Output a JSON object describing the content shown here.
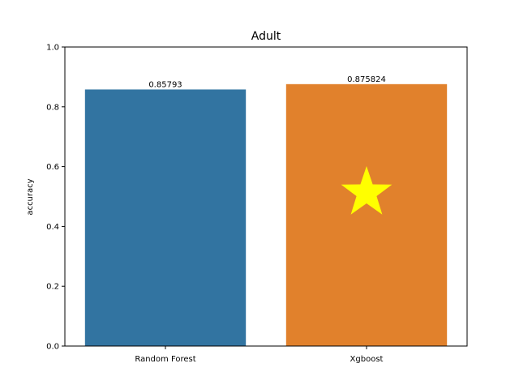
{
  "chart_data": {
    "type": "bar",
    "title": "Adult",
    "xlabel": "",
    "ylabel": "accuracy",
    "categories": [
      "Random Forest",
      "Xgboost"
    ],
    "values": [
      0.85793,
      0.875824
    ],
    "data_labels": [
      "0.85793",
      "0.875824"
    ],
    "ylim": [
      0,
      1.0
    ],
    "yticks": [
      0.0,
      0.2,
      0.4,
      0.6,
      0.8,
      1.0
    ],
    "ytick_labels": [
      "0.0",
      "0.2",
      "0.4",
      "0.6",
      "0.8",
      "1.0"
    ],
    "grid": false,
    "colors": [
      "#3274a1",
      "#e1812c"
    ],
    "highlight": {
      "category": "Xgboost",
      "marker": "star-icon",
      "color": "#ffff00"
    }
  }
}
